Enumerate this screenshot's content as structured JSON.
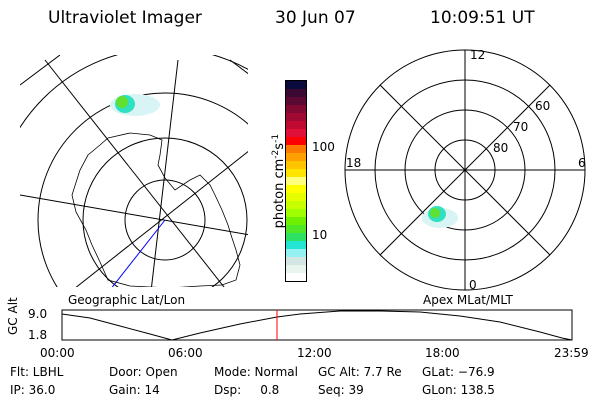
{
  "header": {
    "title": "Ultraviolet Imager",
    "date": "30 Jun 07",
    "time": "10:09:51 UT"
  },
  "left_map": {
    "label": "Geographic Lat/Lon"
  },
  "right_map": {
    "label": "Apex MLat/MLT",
    "mlt_labels": {
      "top": "12",
      "left": "18",
      "right": "6",
      "bottom": "0"
    },
    "lat_labels": [
      "80",
      "70",
      "60"
    ]
  },
  "colorbar": {
    "unit_label": "photon cm",
    "unit_sup1": "-2",
    "unit_s": "s",
    "unit_sup2": "-1",
    "ticks": [
      "100",
      "10"
    ],
    "scale": "log",
    "colors": [
      "#0a0a3c",
      "#3a0a32",
      "#5a0a32",
      "#800a32",
      "#a00a32",
      "#c00a32",
      "#e0103a",
      "#ff0000",
      "#ff7800",
      "#ffa000",
      "#ffc400",
      "#ffe400",
      "#ffff80",
      "#ffff00",
      "#e6ff00",
      "#c8ff00",
      "#a0ff00",
      "#6ef000",
      "#4ee828",
      "#2ee064",
      "#24e4d4",
      "#96f2f2",
      "#d4e6e4",
      "#eaf4ee",
      "#ffffff"
    ]
  },
  "altitude_plot": {
    "ylabel": "GC Alt",
    "yticks": [
      "9.0",
      "1.8"
    ],
    "xticks": [
      "00:00",
      "06:00",
      "12:00",
      "18:00",
      "23:59"
    ],
    "current_time_marker": "10:09:51",
    "marker_color": "#ff0000"
  },
  "info": {
    "flt": "Flt: LBHL",
    "ip": "IP: 36.0",
    "door": "Door: Open",
    "gain": "Gain: 14",
    "mode": "Mode: Normal",
    "dsp": "Dsp:     0.8",
    "gcalt": "GC Alt: 7.7 Re",
    "seq": "Seq: 39",
    "glat": "GLat: −76.9",
    "glon": "GLon: 138.5"
  }
}
